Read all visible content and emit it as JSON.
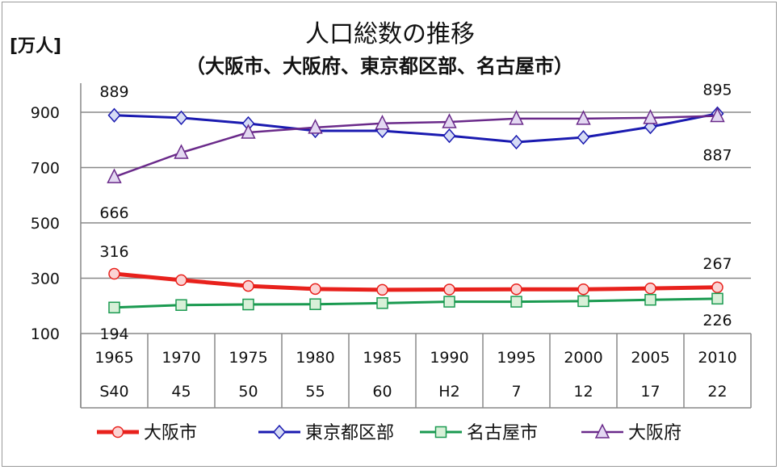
{
  "chart_data": {
    "type": "line",
    "title": "人口総数の推移",
    "subtitle": "（大阪市、大阪府、東京都区部、名古屋市）",
    "ylabel": "[万人]",
    "ylim": [
      100,
      900
    ],
    "yticks": [
      100,
      300,
      500,
      700,
      900
    ],
    "grid": true,
    "categories": [
      "1965",
      "1970",
      "1975",
      "1980",
      "1985",
      "1990",
      "1995",
      "2000",
      "2005",
      "2010"
    ],
    "era_labels": [
      "S40",
      "45",
      "50",
      "55",
      "60",
      "H2",
      "7",
      "12",
      "17",
      "22"
    ],
    "legend_position": "bottom",
    "series": [
      {
        "name": "大阪市",
        "color": "#e8211c",
        "marker": "circle",
        "values": [
          316,
          293,
          272,
          261,
          258,
          259,
          260,
          260,
          263,
          267
        ]
      },
      {
        "name": "東京都区部",
        "color": "#1a1ab0",
        "marker": "diamond",
        "values": [
          889,
          880,
          859,
          833,
          833,
          815,
          792,
          809,
          847,
          895
        ]
      },
      {
        "name": "名古屋市",
        "color": "#1a9a50",
        "marker": "square",
        "values": [
          194,
          203,
          205,
          206,
          210,
          215,
          215,
          217,
          222,
          226
        ]
      },
      {
        "name": "大阪府",
        "color": "#6a2a8a",
        "marker": "triangle",
        "values": [
          666,
          754,
          827,
          845,
          860,
          865,
          877,
          877,
          880,
          887
        ]
      }
    ],
    "data_labels": [
      {
        "series": 1,
        "index": 0,
        "text": "889"
      },
      {
        "series": 1,
        "index": 9,
        "text": "895"
      },
      {
        "series": 3,
        "index": 0,
        "text": "666"
      },
      {
        "series": 3,
        "index": 9,
        "text": "887"
      },
      {
        "series": 0,
        "index": 0,
        "text": "316"
      },
      {
        "series": 0,
        "index": 9,
        "text": "267"
      },
      {
        "series": 2,
        "index": 0,
        "text": "194"
      },
      {
        "series": 2,
        "index": 9,
        "text": "226"
      }
    ]
  }
}
